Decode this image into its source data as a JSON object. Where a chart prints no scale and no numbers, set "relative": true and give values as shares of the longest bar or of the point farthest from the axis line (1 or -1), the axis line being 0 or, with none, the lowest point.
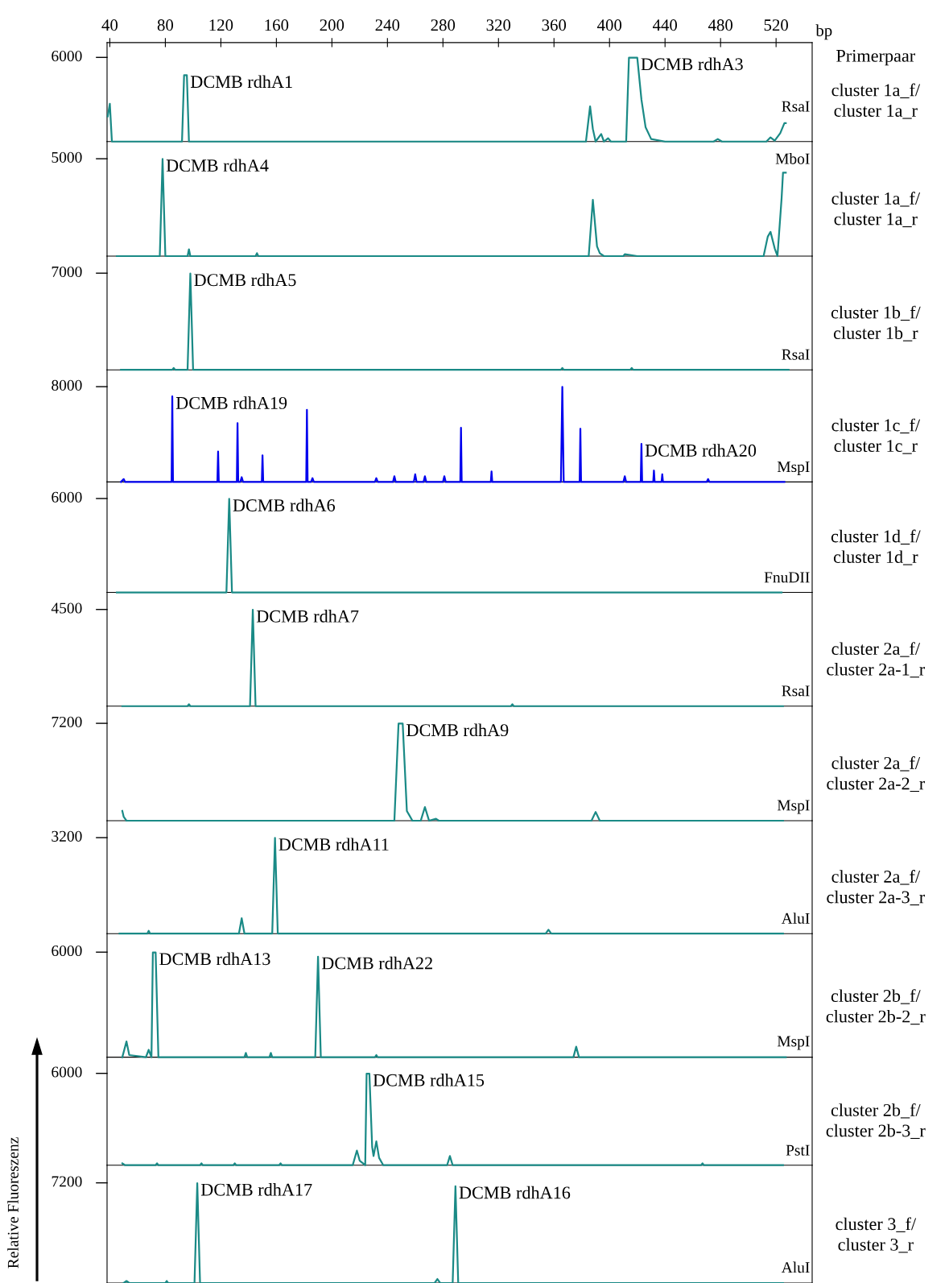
{
  "chart_data": [
    {
      "type": "line",
      "relative": true,
      "color": "#1a8a86",
      "xlabel": "bp",
      "xlim": [
        38,
        546
      ],
      "xticks": [
        40,
        80,
        120,
        160,
        200,
        240,
        280,
        320,
        360,
        400,
        440,
        480,
        520
      ],
      "x": [
        38.5,
        40,
        41.5,
        92,
        93.5,
        95.5,
        97,
        383,
        386,
        388,
        390,
        394,
        396,
        399,
        401,
        412,
        414,
        420,
        423,
        426,
        430,
        440,
        475,
        478,
        481,
        513,
        516,
        519,
        523,
        526,
        527
      ],
      "values": [
        0.3,
        0.45,
        0,
        0,
        0.79,
        0.79,
        0,
        0,
        0.42,
        0.15,
        0,
        0.09,
        0,
        0.04,
        0,
        0,
        1,
        1,
        0.5,
        0.17,
        0.03,
        0,
        0,
        0.03,
        0,
        0,
        0.05,
        0.01,
        0.1,
        0.22,
        0.22
      ],
      "annotations": [
        "6000",
        "RsaI",
        "cluster 1a_f/\ncluster 1a_r",
        "Primerpaar",
        {
          "text": "DCMB rdhA1",
          "x": 95.5,
          "y": 0.79
        },
        {
          "text": "DCMB rdhA3",
          "x": 420,
          "y": 1
        }
      ]
    },
    {
      "type": "line",
      "relative": true,
      "color": "#1a8a86",
      "xlim": [
        38,
        546
      ],
      "tick_labels": false,
      "x": [
        45,
        76,
        78,
        80,
        96,
        97,
        98,
        145,
        146,
        147,
        385,
        388,
        391,
        393,
        396,
        410,
        411,
        420,
        511,
        514,
        516,
        519,
        521,
        524,
        525,
        527
      ],
      "values": [
        0,
        0,
        1,
        0,
        0,
        0.07,
        0,
        0,
        0.03,
        0,
        0,
        0.58,
        0.1,
        0.03,
        0,
        0,
        0.02,
        0,
        0,
        0.2,
        0.25,
        0.08,
        0,
        0.6,
        0.86,
        0.86
      ],
      "annotations": [
        "5000",
        "MboI",
        "cluster 1a_f/\ncluster 1a_r",
        {
          "text": "DCMB rdhA4",
          "x": 78,
          "y": 1
        }
      ]
    },
    {
      "type": "line",
      "relative": true,
      "color": "#1a8a86",
      "xlim": [
        38,
        546
      ],
      "tick_labels": false,
      "x": [
        48,
        85,
        86,
        87,
        96,
        98,
        100,
        365,
        366,
        367,
        415,
        416,
        417,
        529
      ],
      "values": [
        0,
        0,
        0.02,
        0,
        0,
        1,
        0,
        0,
        0.02,
        0,
        0,
        0.02,
        0,
        0
      ],
      "annotations": [
        "7000",
        "RsaI",
        "cluster 1b_f/\ncluster 1b_r",
        {
          "text": "DCMB rdhA5",
          "x": 98,
          "y": 1
        }
      ]
    },
    {
      "type": "line",
      "relative": true,
      "color": "#0000ee",
      "xlim": [
        38,
        546
      ],
      "tick_labels": false,
      "x": [
        48,
        50,
        51,
        84.5,
        85,
        85.5,
        117.5,
        118,
        118.5,
        131.5,
        132,
        132.5,
        134,
        135,
        136,
        149.5,
        150,
        150.5,
        181.5,
        182,
        182.5,
        185,
        186,
        187,
        231,
        232,
        233,
        244,
        245,
        246,
        259,
        260,
        261,
        266,
        267,
        268,
        280,
        281,
        282,
        292.5,
        293,
        293.5,
        314.5,
        315,
        315.5,
        365,
        366,
        367,
        378.5,
        379,
        379.5,
        410,
        411,
        412,
        422.5,
        423,
        423.5,
        431.5,
        432,
        432.5,
        437.5,
        438,
        438.5,
        470,
        471,
        472,
        526
      ],
      "values": [
        0,
        0.03,
        0,
        0,
        0.9,
        0,
        0,
        0.32,
        0,
        0,
        0.62,
        0,
        0,
        0.05,
        0,
        0,
        0.28,
        0,
        0,
        0.76,
        0,
        0,
        0.04,
        0,
        0,
        0.04,
        0,
        0,
        0.06,
        0,
        0,
        0.08,
        0,
        0,
        0.06,
        0,
        0,
        0.06,
        0,
        0,
        0.57,
        0,
        0,
        0.11,
        0,
        0,
        1,
        0,
        0,
        0.56,
        0,
        0,
        0.06,
        0,
        0,
        0.4,
        0,
        0,
        0.12,
        0,
        0,
        0.08,
        0,
        0,
        0.03,
        0,
        0
      ],
      "annotations": [
        "8000",
        "MspI",
        "cluster 1c_f/\ncluster 1c_r",
        {
          "text": "DCMB rdhA19",
          "x": 85,
          "y": 0.9
        },
        {
          "text": "DCMB rdhA20",
          "x": 423,
          "y": 0.4
        }
      ]
    },
    {
      "type": "line",
      "relative": true,
      "color": "#1a8a86",
      "xlim": [
        38,
        546
      ],
      "tick_labels": false,
      "x": [
        45,
        124,
        126,
        128,
        524
      ],
      "values": [
        0,
        0,
        1,
        0,
        0
      ],
      "annotations": [
        "6000",
        "FnuDII",
        "cluster 1d_f/\ncluster 1d_r",
        {
          "text": "DCMB rdhA6",
          "x": 126,
          "y": 1
        }
      ]
    },
    {
      "type": "line",
      "relative": true,
      "color": "#1a8a86",
      "xlim": [
        38,
        546
      ],
      "tick_labels": false,
      "x": [
        49,
        96,
        97,
        98,
        141,
        143,
        145,
        329,
        330,
        331,
        525
      ],
      "values": [
        0,
        0,
        0.02,
        0,
        0,
        1,
        0,
        0,
        0.02,
        0,
        0
      ],
      "annotations": [
        "4500",
        "RsaI",
        "cluster 2a_f/\ncluster 2a-1_r",
        {
          "text": "DCMB rdhA7",
          "x": 143,
          "y": 1
        }
      ]
    },
    {
      "type": "line",
      "relative": true,
      "color": "#1a8a86",
      "xlim": [
        38,
        546
      ],
      "tick_labels": false,
      "x": [
        49,
        50,
        52,
        245,
        248,
        251,
        254,
        258,
        264,
        267,
        270,
        275,
        277,
        387,
        390,
        393,
        525
      ],
      "values": [
        0.1,
        0.04,
        0,
        0,
        1,
        1,
        0.1,
        0,
        0,
        0.14,
        0,
        0.02,
        0,
        0,
        0.09,
        0,
        0
      ],
      "annotations": [
        "7200",
        "MspI",
        "cluster 2a_f/\ncluster 2a-2_r",
        {
          "text": "DCMB rdhA9",
          "x": 251,
          "y": 1
        }
      ]
    },
    {
      "type": "line",
      "relative": true,
      "color": "#1a8a86",
      "xlim": [
        38,
        546
      ],
      "tick_labels": false,
      "x": [
        47,
        67,
        68,
        69,
        133,
        135,
        137,
        157,
        159,
        161,
        354,
        356,
        358,
        525
      ],
      "values": [
        0,
        0,
        0.03,
        0,
        0,
        0.16,
        0,
        0,
        1,
        0,
        0,
        0.04,
        0,
        0
      ],
      "annotations": [
        "3200",
        "AluI",
        "cluster 2a_f/\ncluster 2a-3_r",
        {
          "text": "DCMB rdhA11",
          "x": 159,
          "y": 1
        }
      ]
    },
    {
      "type": "line",
      "relative": true,
      "color": "#1a8a86",
      "xlim": [
        38,
        546
      ],
      "tick_labels": false,
      "x": [
        49,
        52,
        54,
        66,
        68,
        70,
        71,
        73,
        75,
        137,
        138,
        139,
        155,
        156,
        157,
        188,
        190,
        192,
        231,
        232,
        233,
        374,
        376,
        378,
        527
      ],
      "values": [
        0,
        0.15,
        0.02,
        0,
        0.07,
        0,
        1,
        1,
        0,
        0,
        0.04,
        0,
        0,
        0.04,
        0,
        0,
        0.96,
        0,
        0,
        0.02,
        0,
        0,
        0.1,
        0,
        0
      ],
      "annotations": [
        "6000",
        "MspI",
        "cluster 2b_f/\ncluster 2b-2_r",
        {
          "text": "DCMB rdhA13",
          "x": 73,
          "y": 1
        },
        {
          "text": "DCMB rdhA22",
          "x": 190,
          "y": 0.96
        }
      ]
    },
    {
      "type": "line",
      "relative": true,
      "color": "#1a8a86",
      "xlim": [
        38,
        546
      ],
      "tick_labels": false,
      "x": [
        49,
        51,
        73,
        74,
        75,
        105,
        106,
        107,
        129,
        130,
        131,
        162,
        163,
        164,
        215,
        218,
        220,
        224,
        225,
        227,
        229,
        230,
        232,
        234,
        237,
        283,
        285,
        287,
        466,
        467,
        468,
        525
      ],
      "values": [
        0.02,
        0,
        0,
        0.02,
        0,
        0,
        0.02,
        0,
        0,
        0.02,
        0,
        0,
        0.02,
        0,
        0,
        0.16,
        0.05,
        0,
        1,
        1,
        0.2,
        0.1,
        0.26,
        0.08,
        0,
        0,
        0.1,
        0,
        0,
        0.02,
        0,
        0
      ],
      "annotations": [
        "6000",
        "PstI",
        "cluster 2b_f/\ncluster 2b-3_r",
        {
          "text": "DCMB rdhA15",
          "x": 227,
          "y": 1
        }
      ]
    },
    {
      "type": "line",
      "relative": true,
      "color": "#1a8a86",
      "xlim": [
        38,
        546
      ],
      "tick_labels": false,
      "ylabel": "Relative Fluoreszenz",
      "x": [
        50,
        52,
        54,
        80,
        81,
        82,
        101,
        103,
        105,
        274,
        276,
        278,
        287,
        289,
        291,
        525
      ],
      "values": [
        0,
        0.02,
        0,
        0,
        0.02,
        0,
        0,
        1,
        0,
        0,
        0.04,
        0,
        0,
        0.97,
        0,
        0
      ],
      "annotations": [
        "7200",
        "AluI",
        "cluster 3_f/\ncluster 3_r",
        {
          "text": "DCMB rdhA17",
          "x": 103,
          "y": 1
        },
        {
          "text": "DCMB rdhA16",
          "x": 289,
          "y": 0.97
        }
      ]
    }
  ]
}
